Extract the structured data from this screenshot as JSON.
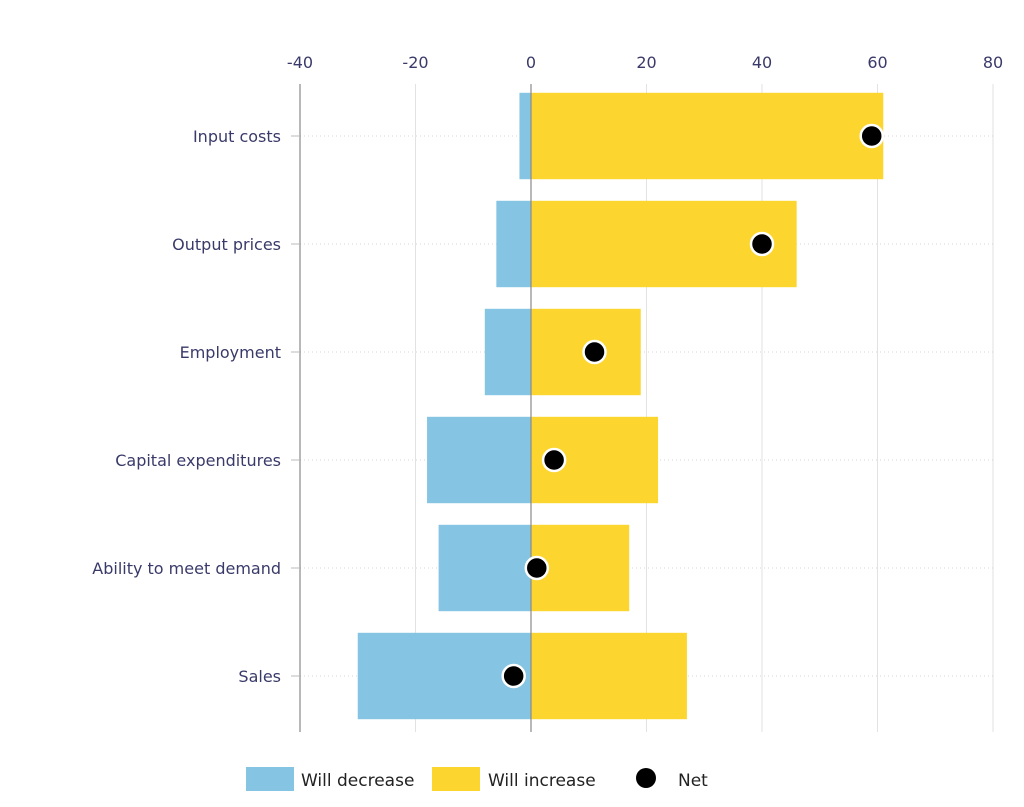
{
  "chart_data": {
    "type": "bar",
    "orientation": "horizontal",
    "stacked": "diverging",
    "title": "",
    "xlabel": "",
    "ylabel": "",
    "xlim": [
      -40,
      80
    ],
    "xticks": [
      -40,
      -20,
      0,
      20,
      40,
      60,
      80
    ],
    "xtick_labels": [
      "-40",
      "-20",
      "0",
      "20",
      "40",
      "60",
      "80"
    ],
    "x_axis_position": "top",
    "grid": true,
    "categories": [
      "Input costs",
      "Output prices",
      "Employment",
      "Capital expenditures",
      "Ability to meet demand",
      "Sales"
    ],
    "series": [
      {
        "name": "Will decrease",
        "kind": "bar",
        "color": "#85c4e2",
        "values": [
          -2,
          -6,
          -8,
          -18,
          -16,
          -30
        ]
      },
      {
        "name": "Will increase",
        "kind": "bar",
        "color": "#fcd62e",
        "values": [
          61,
          46,
          19,
          22,
          17,
          27
        ]
      },
      {
        "name": "Net",
        "kind": "point",
        "color": "#000000",
        "values": [
          59,
          40,
          11,
          4,
          1,
          -3
        ]
      }
    ],
    "legend": {
      "position": "bottom",
      "entries": [
        "Will decrease",
        "Will increase",
        "Net"
      ]
    }
  }
}
